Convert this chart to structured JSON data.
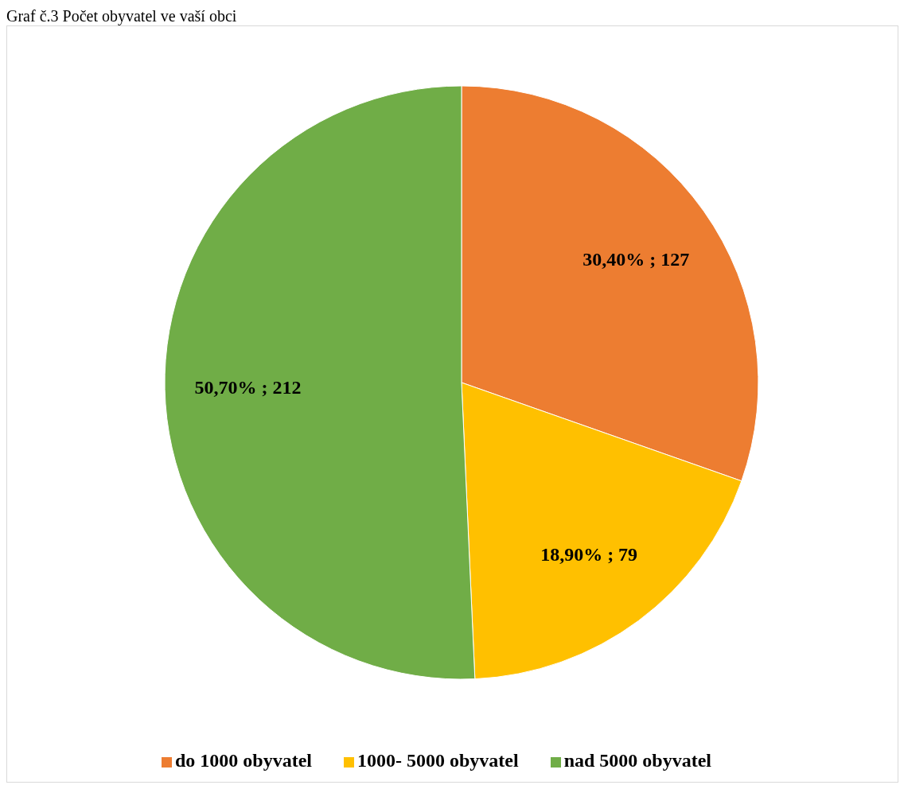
{
  "chart_data": {
    "type": "pie",
    "title": "Graf č.3 Počet obyvatel ve vaší obci",
    "categories": [
      "do 1000 obyvatel",
      "1000- 5000 obyvatel",
      "nad 5000 obyvatel"
    ],
    "values": [
      127,
      79,
      212
    ],
    "value_labels": [
      "30,40% ; 127",
      "18,90% ; 79",
      "50,70% ; 212"
    ],
    "colors": [
      "#ed7d31",
      "#ffc000",
      "#70ad47"
    ],
    "legend": "bottom"
  }
}
